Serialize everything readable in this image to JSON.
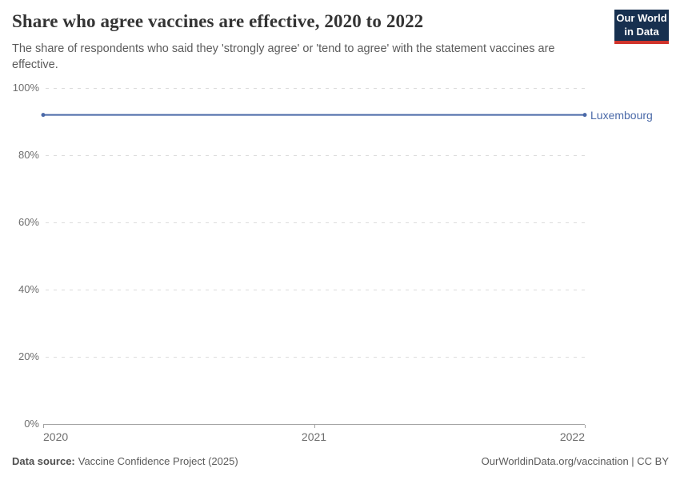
{
  "header": {
    "title": "Share who agree vaccines are effective, 2020 to 2022",
    "subtitle": "The share of respondents who said they 'strongly agree' or 'tend to agree' with the statement vaccines are effective.",
    "logo": {
      "line1": "Our World",
      "line2": "in Data",
      "bg_color": "#17304f",
      "accent_color": "#d0342c"
    }
  },
  "chart_data": {
    "type": "line",
    "title": "Share who agree vaccines are effective, 2020 to 2022",
    "xlabel": "",
    "ylabel": "",
    "xlim": [
      2020,
      2022
    ],
    "ylim": [
      0,
      100
    ],
    "x_tick_values": [
      2020,
      2021,
      2022
    ],
    "x_ticks": [
      "2020",
      "2021",
      "2022"
    ],
    "y_tick_values": [
      0,
      20,
      40,
      60,
      80,
      100
    ],
    "y_ticks": [
      "0%",
      "20%",
      "40%",
      "60%",
      "80%",
      "100%"
    ],
    "grid": "horizontal-dashed",
    "legend_position": "end-of-line-label",
    "series": [
      {
        "name": "Luxembourg",
        "color": "#4a69a8",
        "x": [
          2020,
          2022
        ],
        "values": [
          92,
          92
        ]
      }
    ]
  },
  "footer": {
    "datasource_label": "Data source:",
    "datasource_value": "Vaccine Confidence Project (2025)",
    "link": "OurWorldinData.org/vaccination | CC BY"
  }
}
